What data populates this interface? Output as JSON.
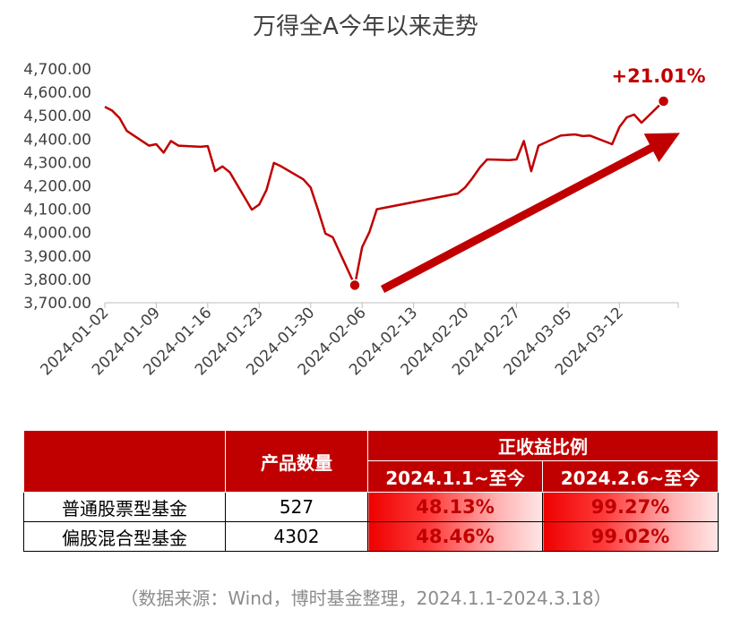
{
  "chart_data": {
    "type": "line",
    "title": "万得全A今年以来走势",
    "ylim": [
      3700,
      4700
    ],
    "yticks": [
      "4,700.00",
      "4,600.00",
      "4,500.00",
      "4,400.00",
      "4,300.00",
      "4,200.00",
      "4,100.00",
      "4,000.00",
      "3,900.00",
      "3,800.00",
      "3,700.00"
    ],
    "ytick_values": [
      4700,
      4600,
      4500,
      4400,
      4300,
      4200,
      4100,
      4000,
      3900,
      3800,
      3700
    ],
    "xticks": [
      "2024-01-02",
      "2024-01-09",
      "2024-01-16",
      "2024-01-23",
      "2024-01-30",
      "2024-02-06",
      "2024-02-13",
      "2024-02-20",
      "2024-02-27",
      "2024-03-05",
      "2024-03-12"
    ],
    "x_range": [
      "2024-01-02",
      "2024-03-20"
    ],
    "grid": false,
    "annotation": "+21.01%",
    "series": [
      {
        "color": "#c00000",
        "points": [
          [
            "2024-01-02",
            4538
          ],
          [
            "2024-01-03",
            4522
          ],
          [
            "2024-01-04",
            4490
          ],
          [
            "2024-01-05",
            4435
          ],
          [
            "2024-01-08",
            4372
          ],
          [
            "2024-01-09",
            4378
          ],
          [
            "2024-01-10",
            4342
          ],
          [
            "2024-01-11",
            4392
          ],
          [
            "2024-01-12",
            4372
          ],
          [
            "2024-01-15",
            4367
          ],
          [
            "2024-01-16",
            4370
          ],
          [
            "2024-01-17",
            4263
          ],
          [
            "2024-01-18",
            4283
          ],
          [
            "2024-01-19",
            4258
          ],
          [
            "2024-01-22",
            4098
          ],
          [
            "2024-01-23",
            4120
          ],
          [
            "2024-01-24",
            4183
          ],
          [
            "2024-01-25",
            4298
          ],
          [
            "2024-01-26",
            4283
          ],
          [
            "2024-01-29",
            4228
          ],
          [
            "2024-01-30",
            4193
          ],
          [
            "2024-01-31",
            4098
          ],
          [
            "2024-02-01",
            3996
          ],
          [
            "2024-02-02",
            3980
          ],
          [
            "2024-02-05",
            3775
          ],
          [
            "2024-02-06",
            3938
          ],
          [
            "2024-02-07",
            4003
          ],
          [
            "2024-02-08",
            4100
          ],
          [
            "2024-02-19",
            4167
          ],
          [
            "2024-02-20",
            4193
          ],
          [
            "2024-02-21",
            4233
          ],
          [
            "2024-02-22",
            4278
          ],
          [
            "2024-02-23",
            4313
          ],
          [
            "2024-02-26",
            4310
          ],
          [
            "2024-02-27",
            4313
          ],
          [
            "2024-02-28",
            4392
          ],
          [
            "2024-02-29",
            4263
          ],
          [
            "2024-03-01",
            4372
          ],
          [
            "2024-03-04",
            4415
          ],
          [
            "2024-03-05",
            4418
          ],
          [
            "2024-03-06",
            4420
          ],
          [
            "2024-03-07",
            4413
          ],
          [
            "2024-03-08",
            4415
          ],
          [
            "2024-03-11",
            4378
          ],
          [
            "2024-03-12",
            4452
          ],
          [
            "2024-03-13",
            4493
          ],
          [
            "2024-03-14",
            4505
          ],
          [
            "2024-03-15",
            4470
          ],
          [
            "2024-03-18",
            4562
          ]
        ]
      }
    ]
  },
  "table": {
    "header_count": "产品数量",
    "header_group": "正收益比例",
    "header_p1": "2024.1.1~至今",
    "header_p2": "2024.2.6~至今",
    "rows": [
      {
        "name": "普通股票型基金",
        "count": "527",
        "p1": "48.13%",
        "p2": "99.27%"
      },
      {
        "name": "偏股混合型基金",
        "count": "4302",
        "p1": "48.46%",
        "p2": "99.02%"
      }
    ]
  },
  "source": "（数据来源：Wind，博时基金整理，2024.1.1-2024.3.18）"
}
